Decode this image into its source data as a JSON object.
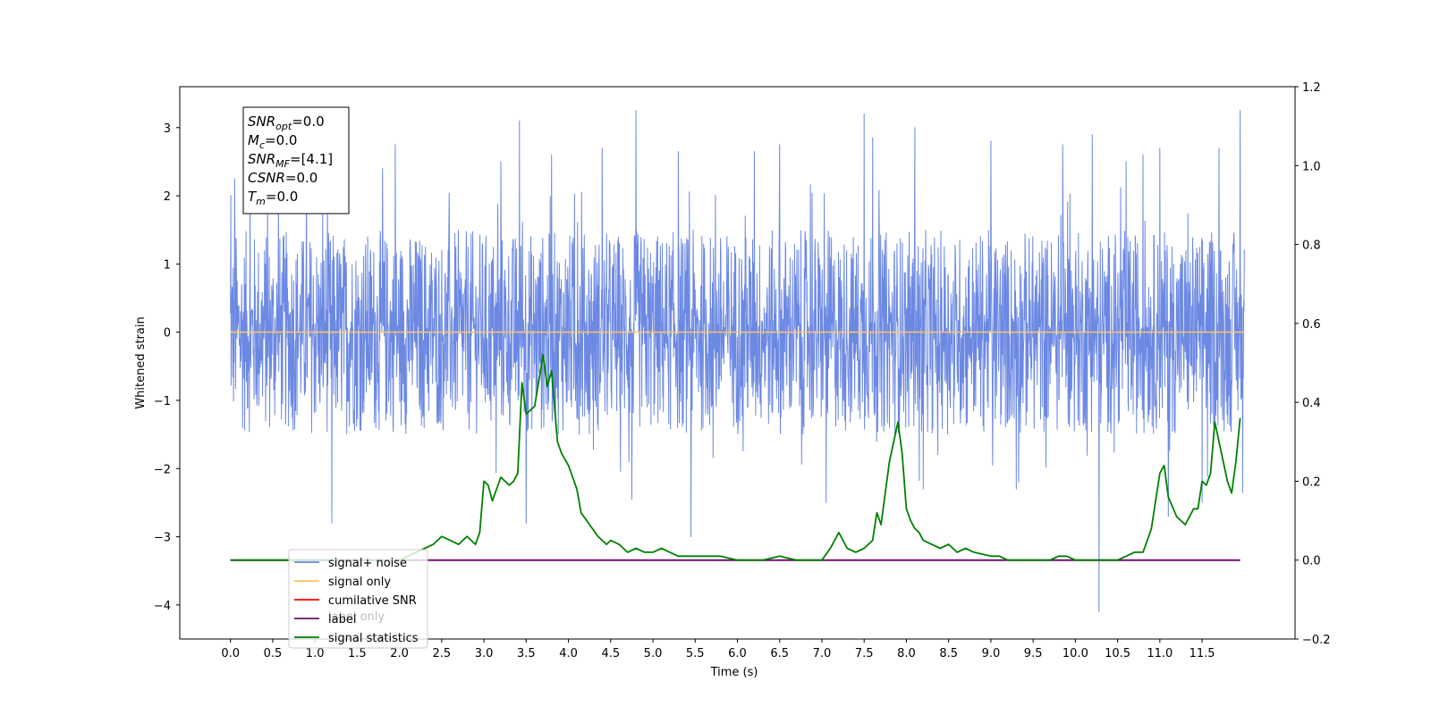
{
  "chart_data": {
    "type": "line",
    "xlabel": "Time (s)",
    "ylabel": "Whitened strain",
    "xlim": [
      -0.6,
      12.6
    ],
    "ylim": [
      -4.5,
      3.6
    ],
    "y2lim": [
      -0.2,
      1.2
    ],
    "x_ticks": [
      "0.0",
      "0.5",
      "1.0",
      "1.5",
      "2.0",
      "2.5",
      "3.0",
      "3.5",
      "4.0",
      "4.5",
      "5.0",
      "5.5",
      "6.0",
      "6.5",
      "7.0",
      "7.5",
      "8.0",
      "8.5",
      "9.0",
      "9.5",
      "10.0",
      "10.5",
      "11.0",
      "11.5"
    ],
    "y_ticks": [
      "3",
      "2",
      "1",
      "0",
      "−1",
      "−2",
      "−3",
      "−4"
    ],
    "y2_ticks": [
      "1.2",
      "1.0",
      "0.8",
      "0.6",
      "0.4",
      "0.2",
      "0.0",
      "−0.2"
    ],
    "annotation": [
      {
        "base": "SNR",
        "sub": "opt",
        "value": "=0.0"
      },
      {
        "base": "M",
        "sub": "c",
        "value": "=0.0"
      },
      {
        "base": "SNR",
        "sub": "MF",
        "value": "=[4.1]"
      },
      {
        "base": "CSNR",
        "sub": "",
        "value": "=0.0"
      },
      {
        "base": "T",
        "sub": "m",
        "value": "=0.0"
      }
    ],
    "legend_placement": "lower-left",
    "legend": [
      {
        "label": "signal+ noise",
        "color": "#6b88e3"
      },
      {
        "label": "signal only",
        "color": "#ffc45c"
      },
      {
        "label": "cumilative SNR",
        "color": "#ff0000"
      },
      {
        "label": "label",
        "color": "#6e0f6e"
      },
      {
        "label": "signal statistics",
        "color": "#008000"
      }
    ],
    "hidden_legend_text": "label only",
    "series": [
      {
        "name": "signal+ noise",
        "axis": "left",
        "color": "#6b88e3",
        "x_range": [
          0.0,
          12.0
        ],
        "typical_range": [
          -1.5,
          1.5
        ],
        "peaks": [
          [
            0.05,
            2.25
          ],
          [
            0.9,
            2.3
          ],
          [
            1.2,
            -2.8
          ],
          [
            1.8,
            2.4
          ],
          [
            1.95,
            2.75
          ],
          [
            3.2,
            2.5
          ],
          [
            3.42,
            3.1
          ],
          [
            3.5,
            -2.8
          ],
          [
            3.8,
            2.6
          ],
          [
            4.4,
            2.7
          ],
          [
            4.8,
            3.25
          ],
          [
            4.75,
            -2.45
          ],
          [
            5.3,
            2.65
          ],
          [
            5.45,
            -3.0
          ],
          [
            6.2,
            2.65
          ],
          [
            6.5,
            2.75
          ],
          [
            7.5,
            3.2
          ],
          [
            7.05,
            -2.5
          ],
          [
            7.6,
            2.85
          ],
          [
            8.1,
            3.0
          ],
          [
            8.2,
            -2.3
          ],
          [
            9.0,
            2.8
          ],
          [
            9.3,
            -2.3
          ],
          [
            9.85,
            2.75
          ],
          [
            10.2,
            2.9
          ],
          [
            10.28,
            -4.1
          ],
          [
            10.6,
            2.5
          ],
          [
            10.8,
            2.6
          ],
          [
            11.1,
            -2.7
          ],
          [
            11.0,
            2.7
          ],
          [
            11.7,
            2.7
          ],
          [
            11.5,
            -2.5
          ],
          [
            11.95,
            3.25
          ],
          [
            11.98,
            -2.35
          ]
        ]
      },
      {
        "name": "signal only",
        "axis": "left",
        "color": "#ffc45c",
        "x": [
          0.0,
          12.0
        ],
        "y": [
          0.0,
          0.0
        ]
      },
      {
        "name": "label",
        "axis": "right",
        "color": "#6e0f6e",
        "x": [
          0.0,
          11.95
        ],
        "y": [
          0.0,
          0.0
        ]
      },
      {
        "name": "signal statistics",
        "axis": "right",
        "color": "#008000",
        "x": [
          0.0,
          2.0,
          2.2,
          2.3,
          2.4,
          2.5,
          2.6,
          2.7,
          2.75,
          2.8,
          2.85,
          2.9,
          2.95,
          3.0,
          3.05,
          3.1,
          3.2,
          3.3,
          3.35,
          3.4,
          3.45,
          3.5,
          3.55,
          3.6,
          3.7,
          3.75,
          3.8,
          3.87,
          3.92,
          4.0,
          4.1,
          4.15,
          4.25,
          4.35,
          4.45,
          4.5,
          4.6,
          4.65,
          4.7,
          4.8,
          4.9,
          5.0,
          5.1,
          5.2,
          5.3,
          5.4,
          5.5,
          5.6,
          5.8,
          6.0,
          6.3,
          6.5,
          6.7,
          7.0,
          7.1,
          7.2,
          7.3,
          7.4,
          7.5,
          7.6,
          7.65,
          7.7,
          7.8,
          7.9,
          7.95,
          8.0,
          8.05,
          8.1,
          8.15,
          8.2,
          8.3,
          8.4,
          8.5,
          8.6,
          8.7,
          8.8,
          9.0,
          9.1,
          9.2,
          9.3,
          9.5,
          9.7,
          9.8,
          9.9,
          10.0,
          10.2,
          10.3,
          10.5,
          10.6,
          10.7,
          10.8,
          10.9,
          11.0,
          11.05,
          11.1,
          11.2,
          11.3,
          11.35,
          11.4,
          11.45,
          11.5,
          11.55,
          11.6,
          11.65,
          11.7,
          11.8,
          11.85,
          11.9,
          11.95
        ],
        "y": [
          0.0,
          0.0,
          0.02,
          0.03,
          0.04,
          0.06,
          0.05,
          0.04,
          0.05,
          0.06,
          0.05,
          0.04,
          0.07,
          0.2,
          0.19,
          0.15,
          0.21,
          0.19,
          0.2,
          0.22,
          0.45,
          0.37,
          0.38,
          0.39,
          0.52,
          0.44,
          0.48,
          0.3,
          0.27,
          0.24,
          0.18,
          0.12,
          0.09,
          0.06,
          0.04,
          0.05,
          0.04,
          0.03,
          0.02,
          0.03,
          0.02,
          0.02,
          0.03,
          0.02,
          0.01,
          0.01,
          0.01,
          0.01,
          0.01,
          0.0,
          0.0,
          0.01,
          0.0,
          0.0,
          0.03,
          0.07,
          0.03,
          0.02,
          0.03,
          0.05,
          0.12,
          0.09,
          0.25,
          0.35,
          0.27,
          0.13,
          0.1,
          0.08,
          0.07,
          0.05,
          0.04,
          0.03,
          0.04,
          0.02,
          0.03,
          0.02,
          0.01,
          0.01,
          0.0,
          0.0,
          0.0,
          0.0,
          0.01,
          0.01,
          0.0,
          0.0,
          0.0,
          0.0,
          0.01,
          0.02,
          0.02,
          0.08,
          0.22,
          0.24,
          0.16,
          0.11,
          0.09,
          0.11,
          0.13,
          0.13,
          0.2,
          0.19,
          0.22,
          0.35,
          0.3,
          0.2,
          0.17,
          0.25,
          0.36
        ]
      }
    ]
  }
}
